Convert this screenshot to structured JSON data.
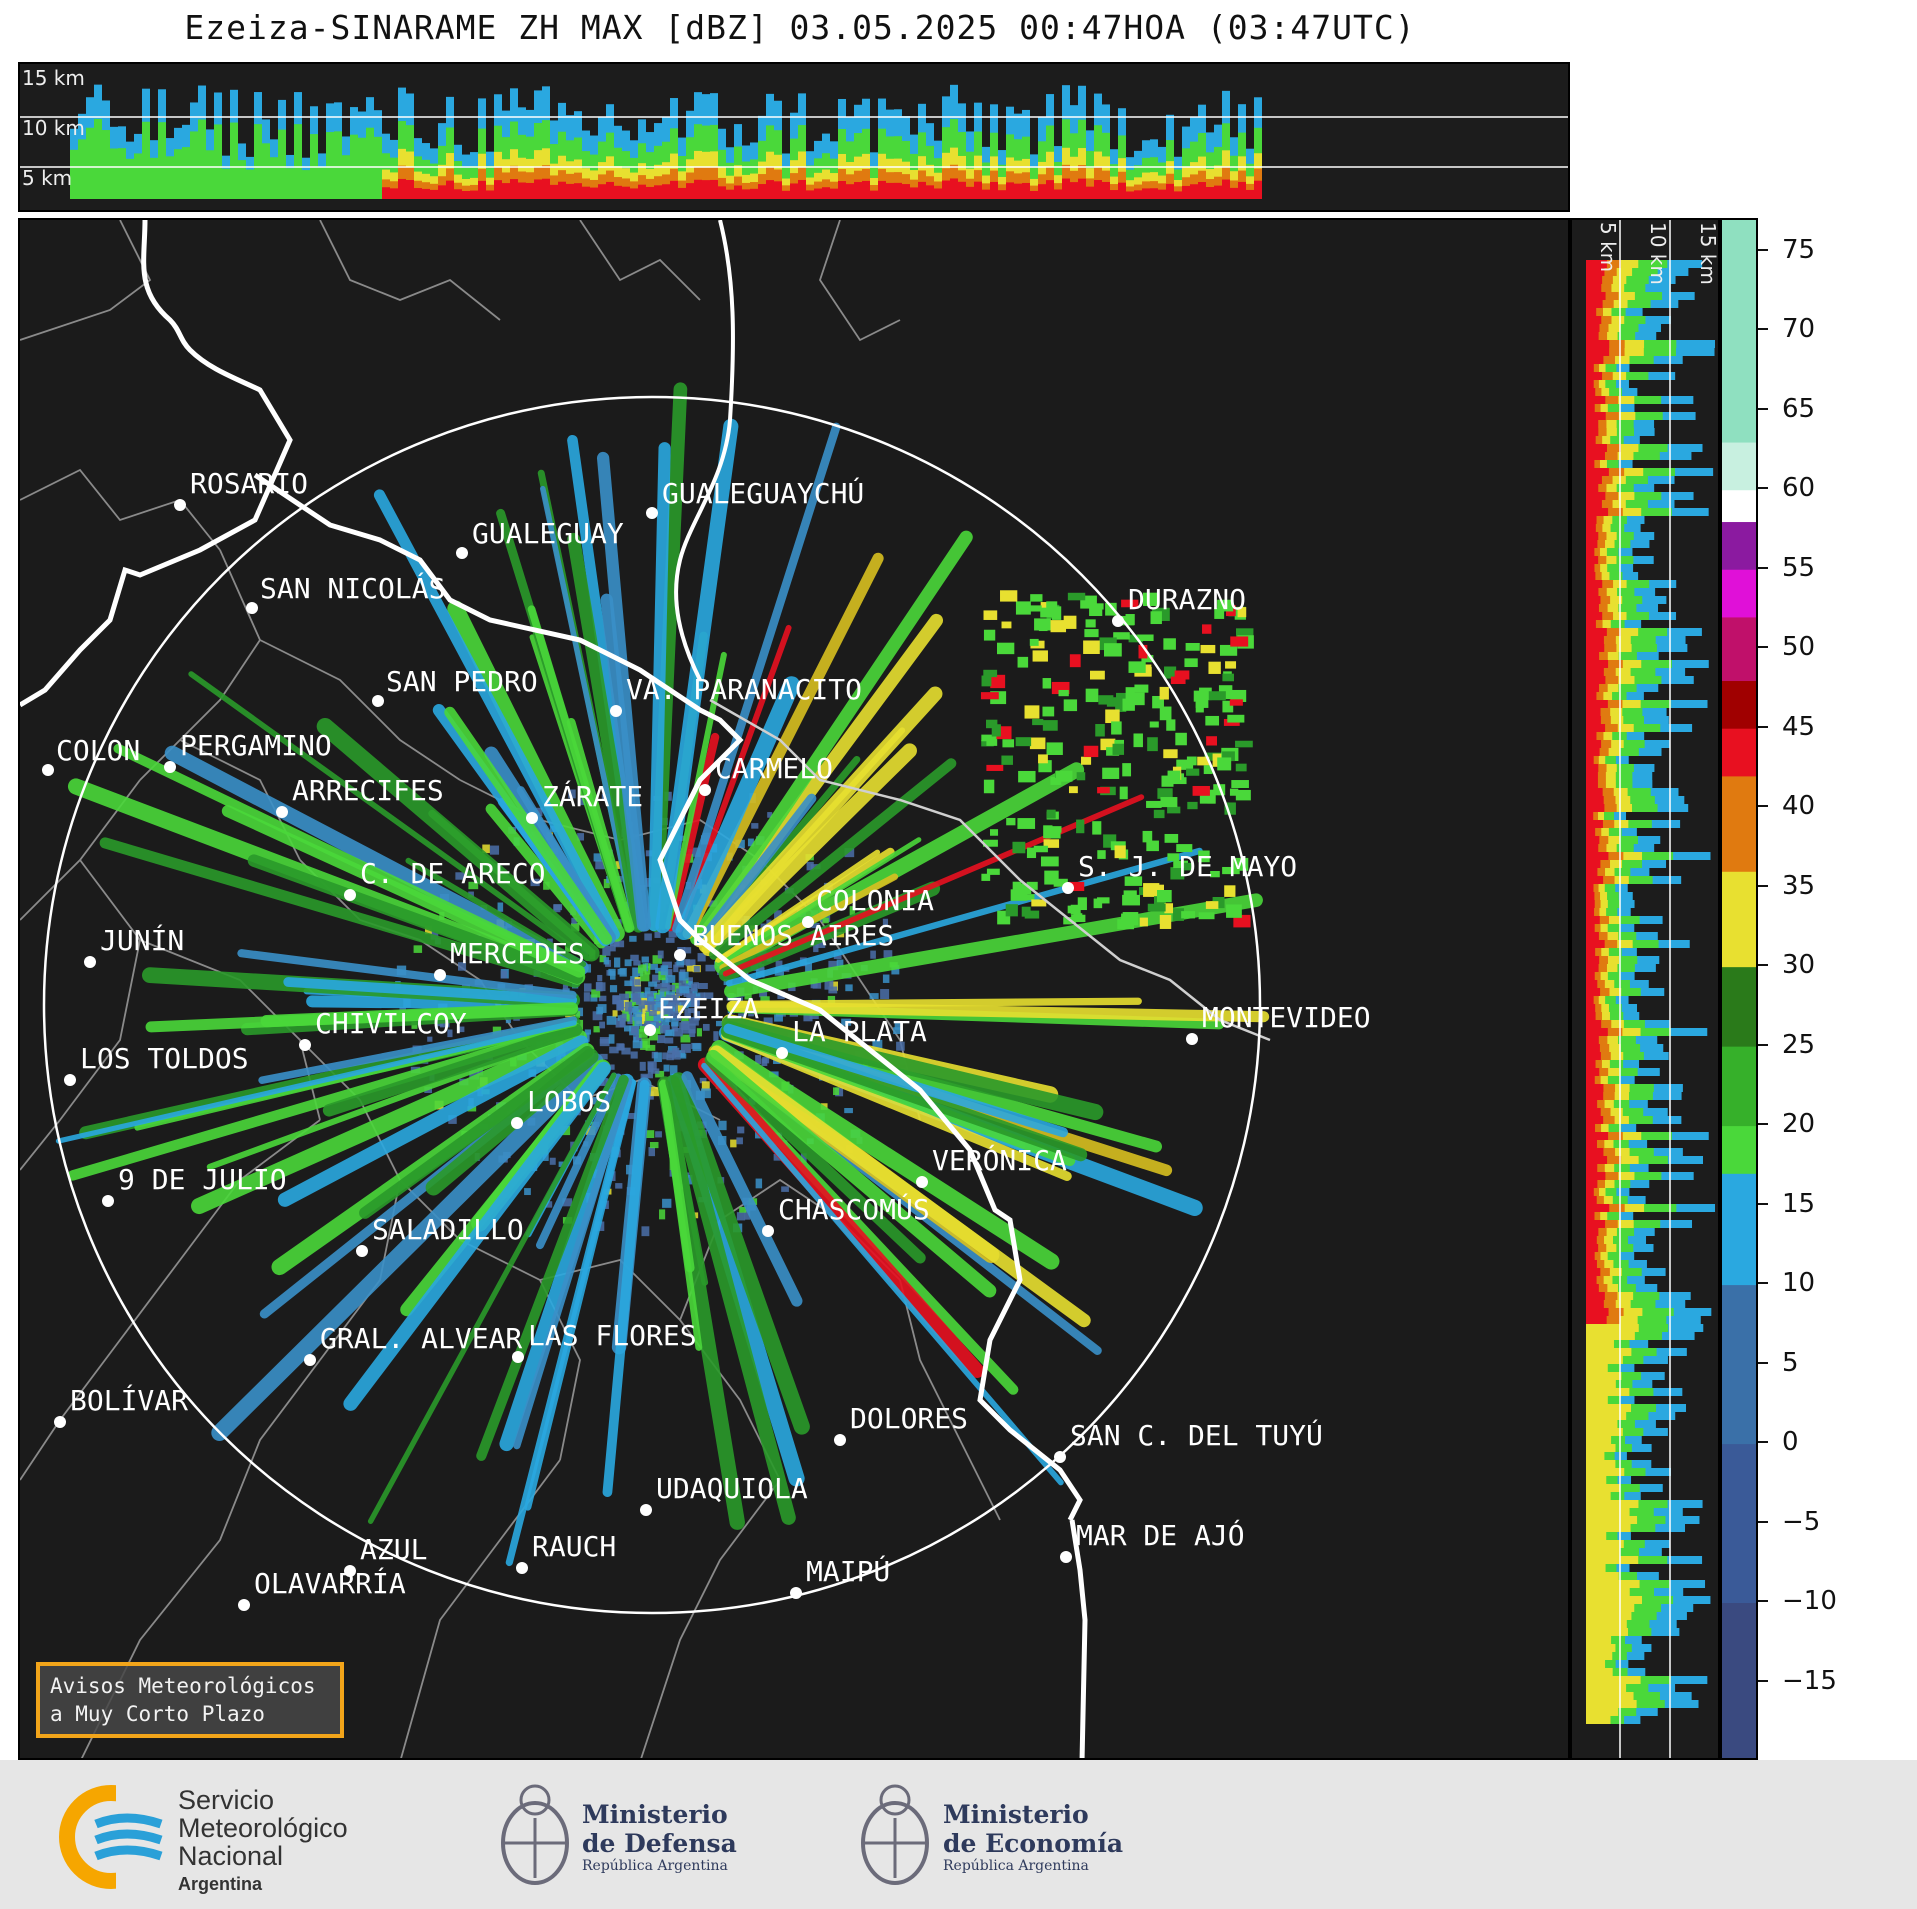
{
  "title": "Ezeiza-SINARAME ZH MAX [dBZ] 03.05.2025 00:47HOA (03:47UTC)",
  "height_labels": {
    "top": [
      "15 km",
      "10 km",
      "5 km"
    ],
    "right": [
      "5 km",
      "10 km",
      "15 km"
    ]
  },
  "colorbar": {
    "unit": "dBZ",
    "ticks": [
      "75",
      "70",
      "65",
      "60",
      "55",
      "50",
      "45",
      "40",
      "35",
      "30",
      "25",
      "20",
      "15",
      "10",
      "5",
      "0",
      "−5",
      "−10",
      "−15"
    ],
    "colors": {
      "light_green": "#8fe0c0",
      "white": "#ffffff",
      "purple": "#8b1aa0",
      "magenta": "#e010d8",
      "dark_red": "#a00000",
      "red": "#e81020",
      "orange": "#e07a10",
      "yellow": "#e8e030",
      "dark_green": "#2a7a1a",
      "green": "#4ad83a",
      "cyan_blue": "#2aa8e0",
      "steel_blue": "#3a70a8",
      "navy": "#3a3a70"
    }
  },
  "cities": [
    {
      "name": "ROSARIO"
    },
    {
      "name": "GUALEGUAYCHÚ"
    },
    {
      "name": "GUALEGUAY"
    },
    {
      "name": "SAN NICOLÁS"
    },
    {
      "name": "DURAZNO"
    },
    {
      "name": "SAN PEDRO"
    },
    {
      "name": "VA. PARANACITO"
    },
    {
      "name": "COLON"
    },
    {
      "name": "PERGAMINO"
    },
    {
      "name": "CARMELO"
    },
    {
      "name": "ARRECIFES"
    },
    {
      "name": "ZÁRATE"
    },
    {
      "name": "C. DE ARECO"
    },
    {
      "name": "S. J. DE MAYO"
    },
    {
      "name": "COLONIA"
    },
    {
      "name": "JUNÍN"
    },
    {
      "name": "MERCEDES"
    },
    {
      "name": "BUENOS AIRES"
    },
    {
      "name": "EZEIZA"
    },
    {
      "name": "CHIVILCOY"
    },
    {
      "name": "LA PLATA"
    },
    {
      "name": "MONTEVIDEO"
    },
    {
      "name": "LOS TOLDOS"
    },
    {
      "name": "LOBOS"
    },
    {
      "name": "VERÓNICA"
    },
    {
      "name": "9 DE JULIO"
    },
    {
      "name": "CHASCOMÚS"
    },
    {
      "name": "SALADILLO"
    },
    {
      "name": "GRAL. ALVEAR"
    },
    {
      "name": "LAS FLORES"
    },
    {
      "name": "BOLÍVAR"
    },
    {
      "name": "DOLORES"
    },
    {
      "name": "SAN C. DEL TUYÚ"
    },
    {
      "name": "UDAQUIOLA"
    },
    {
      "name": "MAR DE AJÓ"
    },
    {
      "name": "AZUL"
    },
    {
      "name": "RAUCH"
    },
    {
      "name": "OLAVARRÍA"
    },
    {
      "name": "MAIPÚ"
    }
  ],
  "avisos": {
    "line1": "Avisos Meteorológicos",
    "line2": "a Muy Corto Plazo"
  },
  "footer": {
    "smn": {
      "line1": "Servicio",
      "line2": "Meteorológico",
      "line3": "Nacional",
      "line4": "Argentina"
    },
    "defensa": {
      "line1": "Ministerio",
      "line2": "de Defensa",
      "line3": "República Argentina"
    },
    "economia": {
      "line1": "Ministerio",
      "line2": "de Economía",
      "line3": "República Argentina"
    }
  }
}
